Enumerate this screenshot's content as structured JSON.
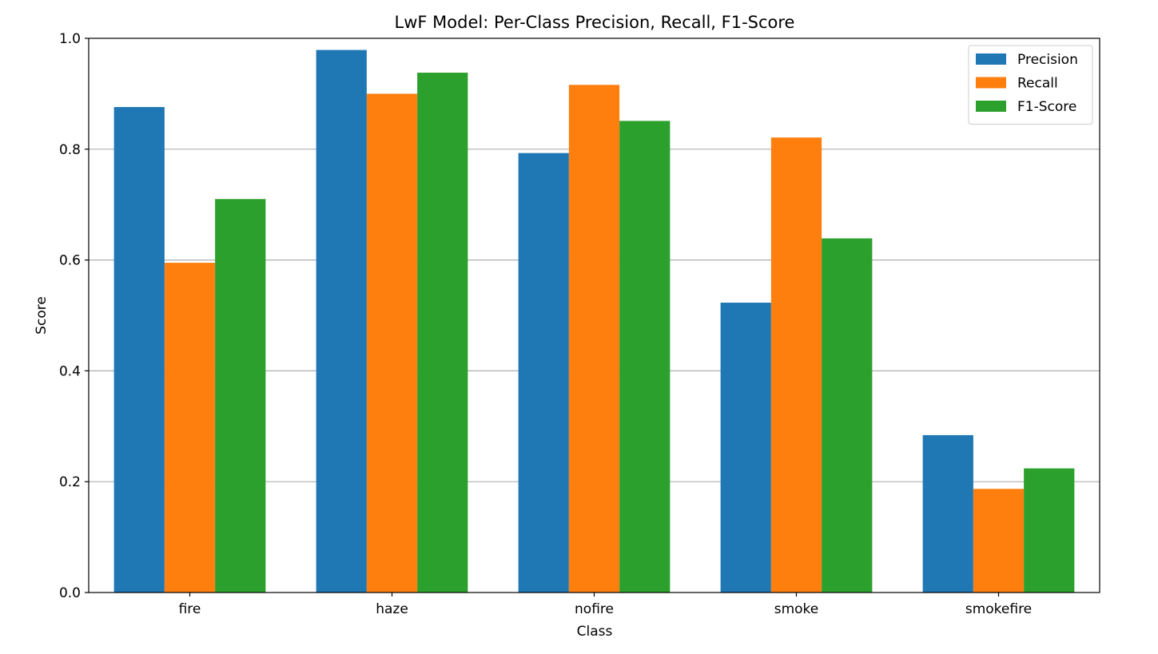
{
  "chart_data": {
    "type": "bar",
    "title": "LwF Model: Per-Class Precision, Recall, F1-Score",
    "xlabel": "Class",
    "ylabel": "Score",
    "ylim": [
      0,
      1.0
    ],
    "yticks": [
      0.0,
      0.2,
      0.4,
      0.6,
      0.8,
      1.0
    ],
    "ytick_labels": [
      "0.0",
      "0.2",
      "0.4",
      "0.6",
      "0.8",
      "1.0"
    ],
    "grid": "y",
    "legend_position": "top-right",
    "categories": [
      "fire",
      "haze",
      "nofire",
      "smoke",
      "smokefire"
    ],
    "series": [
      {
        "name": "Precision",
        "color": "#1f77b4",
        "values": [
          0.876,
          0.979,
          0.793,
          0.523,
          0.284
        ]
      },
      {
        "name": "Recall",
        "color": "#ff7f0e",
        "values": [
          0.595,
          0.9,
          0.916,
          0.821,
          0.187
        ]
      },
      {
        "name": "F1-Score",
        "color": "#2ca02c",
        "values": [
          0.71,
          0.938,
          0.851,
          0.639,
          0.224
        ]
      }
    ]
  }
}
